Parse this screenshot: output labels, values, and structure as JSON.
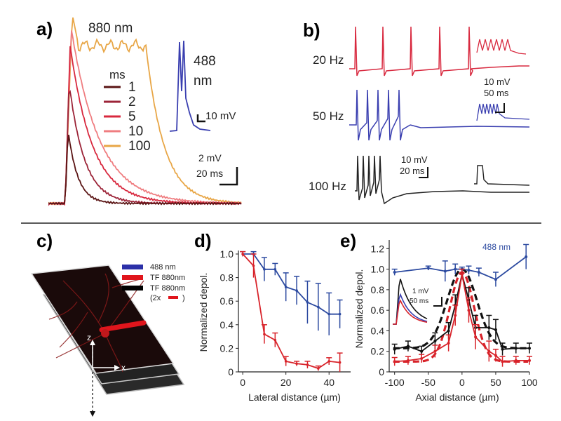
{
  "panels": {
    "a": {
      "label": "a)",
      "title_880": "880 nm",
      "label_488a": "488",
      "label_488b": "nm",
      "scale_488": "10 mV",
      "legend_title": "ms",
      "legend": [
        {
          "label": "1",
          "color": "#5a1414"
        },
        {
          "label": "2",
          "color": "#9c2438"
        },
        {
          "label": "5",
          "color": "#d8283e"
        },
        {
          "label": "10",
          "color": "#ef7d80"
        },
        {
          "label": "100",
          "color": "#e8a646"
        }
      ],
      "scale_v": "2 mV",
      "scale_t": "20 ms",
      "trace_488_color": "#3a3fb0"
    },
    "b": {
      "label": "b)",
      "rows": [
        {
          "label": "20 Hz",
          "color": "#d8283e"
        },
        {
          "label": "50 Hz",
          "color": "#3a3fb0"
        },
        {
          "label": "100 Hz",
          "color": "#222222"
        }
      ],
      "scale_a_v": "10 mV",
      "scale_a_t": "50 ms",
      "scale_b_v": "10 mV",
      "scale_b_t": "20 ms"
    },
    "c": {
      "label": "c)",
      "legend": [
        {
          "label": "488 nm",
          "color": "#2c30a8"
        },
        {
          "label": "TF 880nm",
          "color": "#e0151c"
        },
        {
          "label": "TF 880nm",
          "color": "#000000"
        }
      ],
      "legend_note_open": "(2x",
      "legend_note_close": ")",
      "axis_z": "z",
      "axis_x": "x"
    },
    "d": {
      "label": "d)",
      "ylabel": "Normalized depol.",
      "xlabel": "Lateral distance (µm)"
    },
    "e": {
      "label": "e)",
      "ylabel": "Normalized depol.",
      "xlabel": "Axial distance (µm)",
      "series_label": "488 nm",
      "inset_scale_v": "1 mV",
      "inset_scale_t": "50 ms"
    }
  },
  "chart_data": [
    {
      "type": "line",
      "panel": "d",
      "xlabel": "Lateral distance (µm)",
      "ylabel": "Normalized depol.",
      "xlim": [
        -2,
        50
      ],
      "ylim": [
        0,
        1.0
      ],
      "xticks": [
        0,
        20,
        40
      ],
      "yticks": [
        0,
        0.2,
        0.4,
        0.6,
        0.8,
        1.0
      ],
      "series": [
        {
          "color": "#2c4aa0",
          "x": [
            0,
            5,
            10,
            15,
            20,
            25,
            30,
            35,
            40,
            45
          ],
          "y": [
            1.0,
            1.0,
            0.87,
            0.87,
            0.72,
            0.69,
            0.59,
            0.55,
            0.49,
            0.49
          ],
          "err": [
            0.02,
            0.02,
            0.1,
            0.05,
            0.12,
            0.12,
            0.18,
            0.2,
            0.18,
            0.12
          ]
        },
        {
          "color": "#d8232a",
          "x": [
            0,
            5,
            10,
            15,
            20,
            25,
            30,
            35,
            40,
            45
          ],
          "y": [
            1.0,
            0.9,
            0.32,
            0.27,
            0.09,
            0.07,
            0.06,
            0.03,
            0.09,
            0.08
          ],
          "err": [
            0.02,
            0.1,
            0.08,
            0.06,
            0.04,
            0.02,
            0.03,
            0.02,
            0.03,
            0.08
          ]
        }
      ]
    },
    {
      "type": "line",
      "panel": "e",
      "xlabel": "Axial distance (µm)",
      "ylabel": "Normalized depol.",
      "xlim": [
        -108,
        100
      ],
      "ylim": [
        0,
        1.25
      ],
      "xticks": [
        -100,
        -50,
        0,
        50,
        100
      ],
      "yticks": [
        0,
        0.2,
        0.4,
        0.6,
        0.8,
        1.0,
        1.2
      ],
      "series": [
        {
          "name": "488 nm",
          "color": "#2c4aa0",
          "x": [
            -100,
            -50,
            -25,
            -10,
            0,
            10,
            25,
            50,
            95
          ],
          "y": [
            0.97,
            1.01,
            0.98,
            1.0,
            1.0,
            0.99,
            0.97,
            0.9,
            1.12
          ],
          "err": [
            0.03,
            0.02,
            0.1,
            0.05,
            0.02,
            0.04,
            0.04,
            0.07,
            0.12
          ]
        },
        {
          "color": "#111111",
          "x": [
            -100,
            -80,
            -60,
            -40,
            -20,
            -10,
            0,
            10,
            20,
            40,
            50,
            60,
            80,
            100
          ],
          "y": [
            0.22,
            0.25,
            0.2,
            0.3,
            0.4,
            0.65,
            0.95,
            0.7,
            0.43,
            0.43,
            0.41,
            0.22,
            0.23,
            0.23
          ],
          "err": [
            0.05,
            0.05,
            0.05,
            0.08,
            0.08,
            0.1,
            0.05,
            0.12,
            0.12,
            0.12,
            0.1,
            0.06,
            0.05,
            0.05
          ]
        },
        {
          "color": "#d8232a",
          "x": [
            -100,
            -80,
            -60,
            -40,
            -20,
            -10,
            0,
            10,
            20,
            40,
            50,
            60,
            80,
            100
          ],
          "y": [
            0.1,
            0.11,
            0.13,
            0.2,
            0.28,
            0.55,
            0.95,
            0.6,
            0.34,
            0.2,
            0.16,
            0.1,
            0.11,
            0.11
          ],
          "err": [
            0.04,
            0.04,
            0.04,
            0.06,
            0.08,
            0.1,
            0.05,
            0.12,
            0.12,
            0.1,
            0.06,
            0.05,
            0.04,
            0.04
          ]
        }
      ],
      "fits": [
        {
          "color": "#111111",
          "dashed": true,
          "center": 0,
          "sigma": 22,
          "amp": 0.77,
          "offset": 0.23
        },
        {
          "color": "#d8232a",
          "dashed": true,
          "center": 0,
          "sigma": 18,
          "amp": 0.87,
          "offset": 0.1
        }
      ]
    }
  ]
}
